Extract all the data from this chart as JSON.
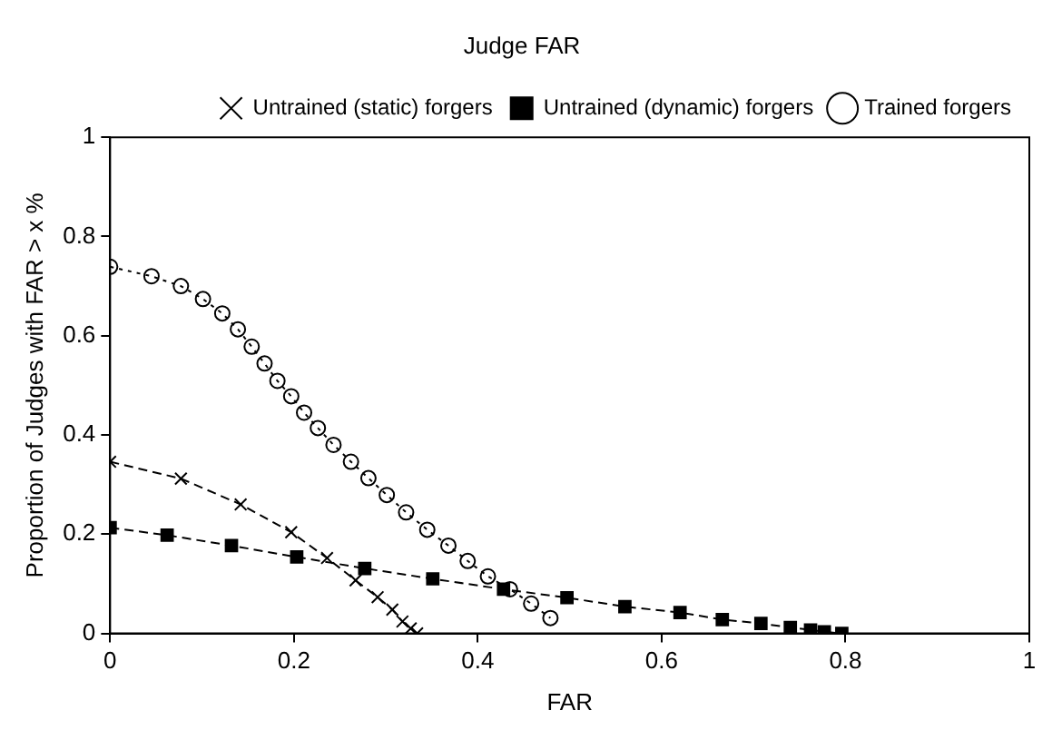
{
  "chart_data": {
    "type": "line",
    "title": "Judge FAR",
    "xlabel": "FAR",
    "ylabel": "Proportion of Judges with FAR > x %",
    "xlim": [
      0,
      1
    ],
    "xticks": [
      0,
      0.2,
      0.4,
      0.6,
      0.8,
      1
    ],
    "ylim": [
      0,
      1
    ],
    "yticks": [
      0,
      0.2,
      0.4,
      0.6,
      0.8,
      1
    ],
    "grid": false,
    "legend": "top right",
    "series": [
      {
        "name": "Untrained (static) forgers",
        "color": "#000000",
        "marker": "cross",
        "line_style": "dashed",
        "x": [
          0,
          0.077,
          0.142,
          0.197,
          0.236,
          0.267,
          0.291,
          0.307,
          0.318,
          0.327,
          0.334
        ],
        "values": [
          0.346,
          0.312,
          0.26,
          0.204,
          0.152,
          0.107,
          0.073,
          0.048,
          0.024,
          0.01,
          0
        ]
      },
      {
        "name": "Untrained (dynamic) forgers",
        "color": "#000000",
        "marker": "square",
        "line_style": "dashed",
        "x": [
          0,
          0.062,
          0.132,
          0.203,
          0.277,
          0.351,
          0.428,
          0.497,
          0.56,
          0.62,
          0.666,
          0.708,
          0.74,
          0.762,
          0.777,
          0.796
        ],
        "values": [
          0.213,
          0.198,
          0.177,
          0.154,
          0.131,
          0.11,
          0.089,
          0.072,
          0.054,
          0.042,
          0.028,
          0.02,
          0.012,
          0.007,
          0.003,
          0
        ]
      },
      {
        "name": "Trained forgers",
        "color": "#000000",
        "marker": "circle",
        "line_style": "dotted",
        "x": [
          0,
          0.045,
          0.077,
          0.101,
          0.122,
          0.139,
          0.154,
          0.168,
          0.182,
          0.197,
          0.211,
          0.226,
          0.243,
          0.262,
          0.281,
          0.301,
          0.322,
          0.345,
          0.368,
          0.389,
          0.411,
          0.435,
          0.458,
          0.479
        ],
        "values": [
          0.739,
          0.72,
          0.7,
          0.674,
          0.645,
          0.613,
          0.578,
          0.544,
          0.509,
          0.478,
          0.445,
          0.414,
          0.38,
          0.346,
          0.313,
          0.279,
          0.244,
          0.209,
          0.177,
          0.146,
          0.115,
          0.089,
          0.06,
          0.031
        ]
      }
    ]
  }
}
